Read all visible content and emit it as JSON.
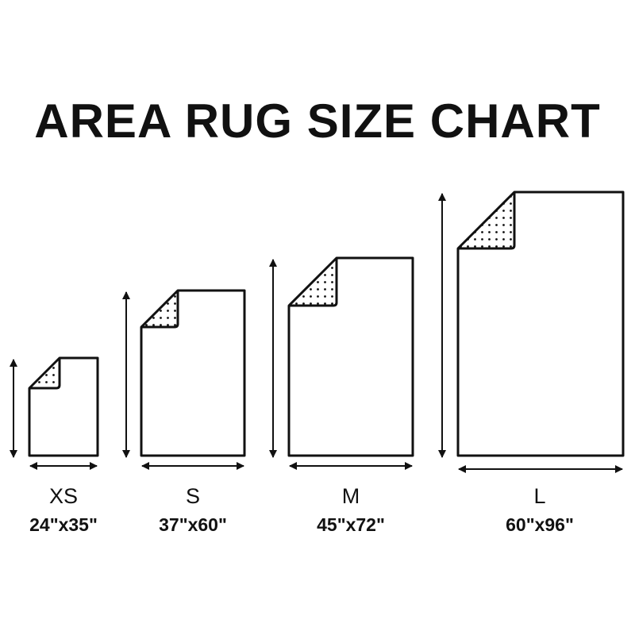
{
  "title": "AREA RUG SIZE CHART",
  "colors": {
    "line": "#111111",
    "background": "#ffffff"
  },
  "sizes": [
    {
      "label": "XS",
      "dimensions": "24\"x35\""
    },
    {
      "label": "S",
      "dimensions": "37\"x60\""
    },
    {
      "label": "M",
      "dimensions": "45\"x72\""
    },
    {
      "label": "L",
      "dimensions": "60\"x96\""
    }
  ]
}
